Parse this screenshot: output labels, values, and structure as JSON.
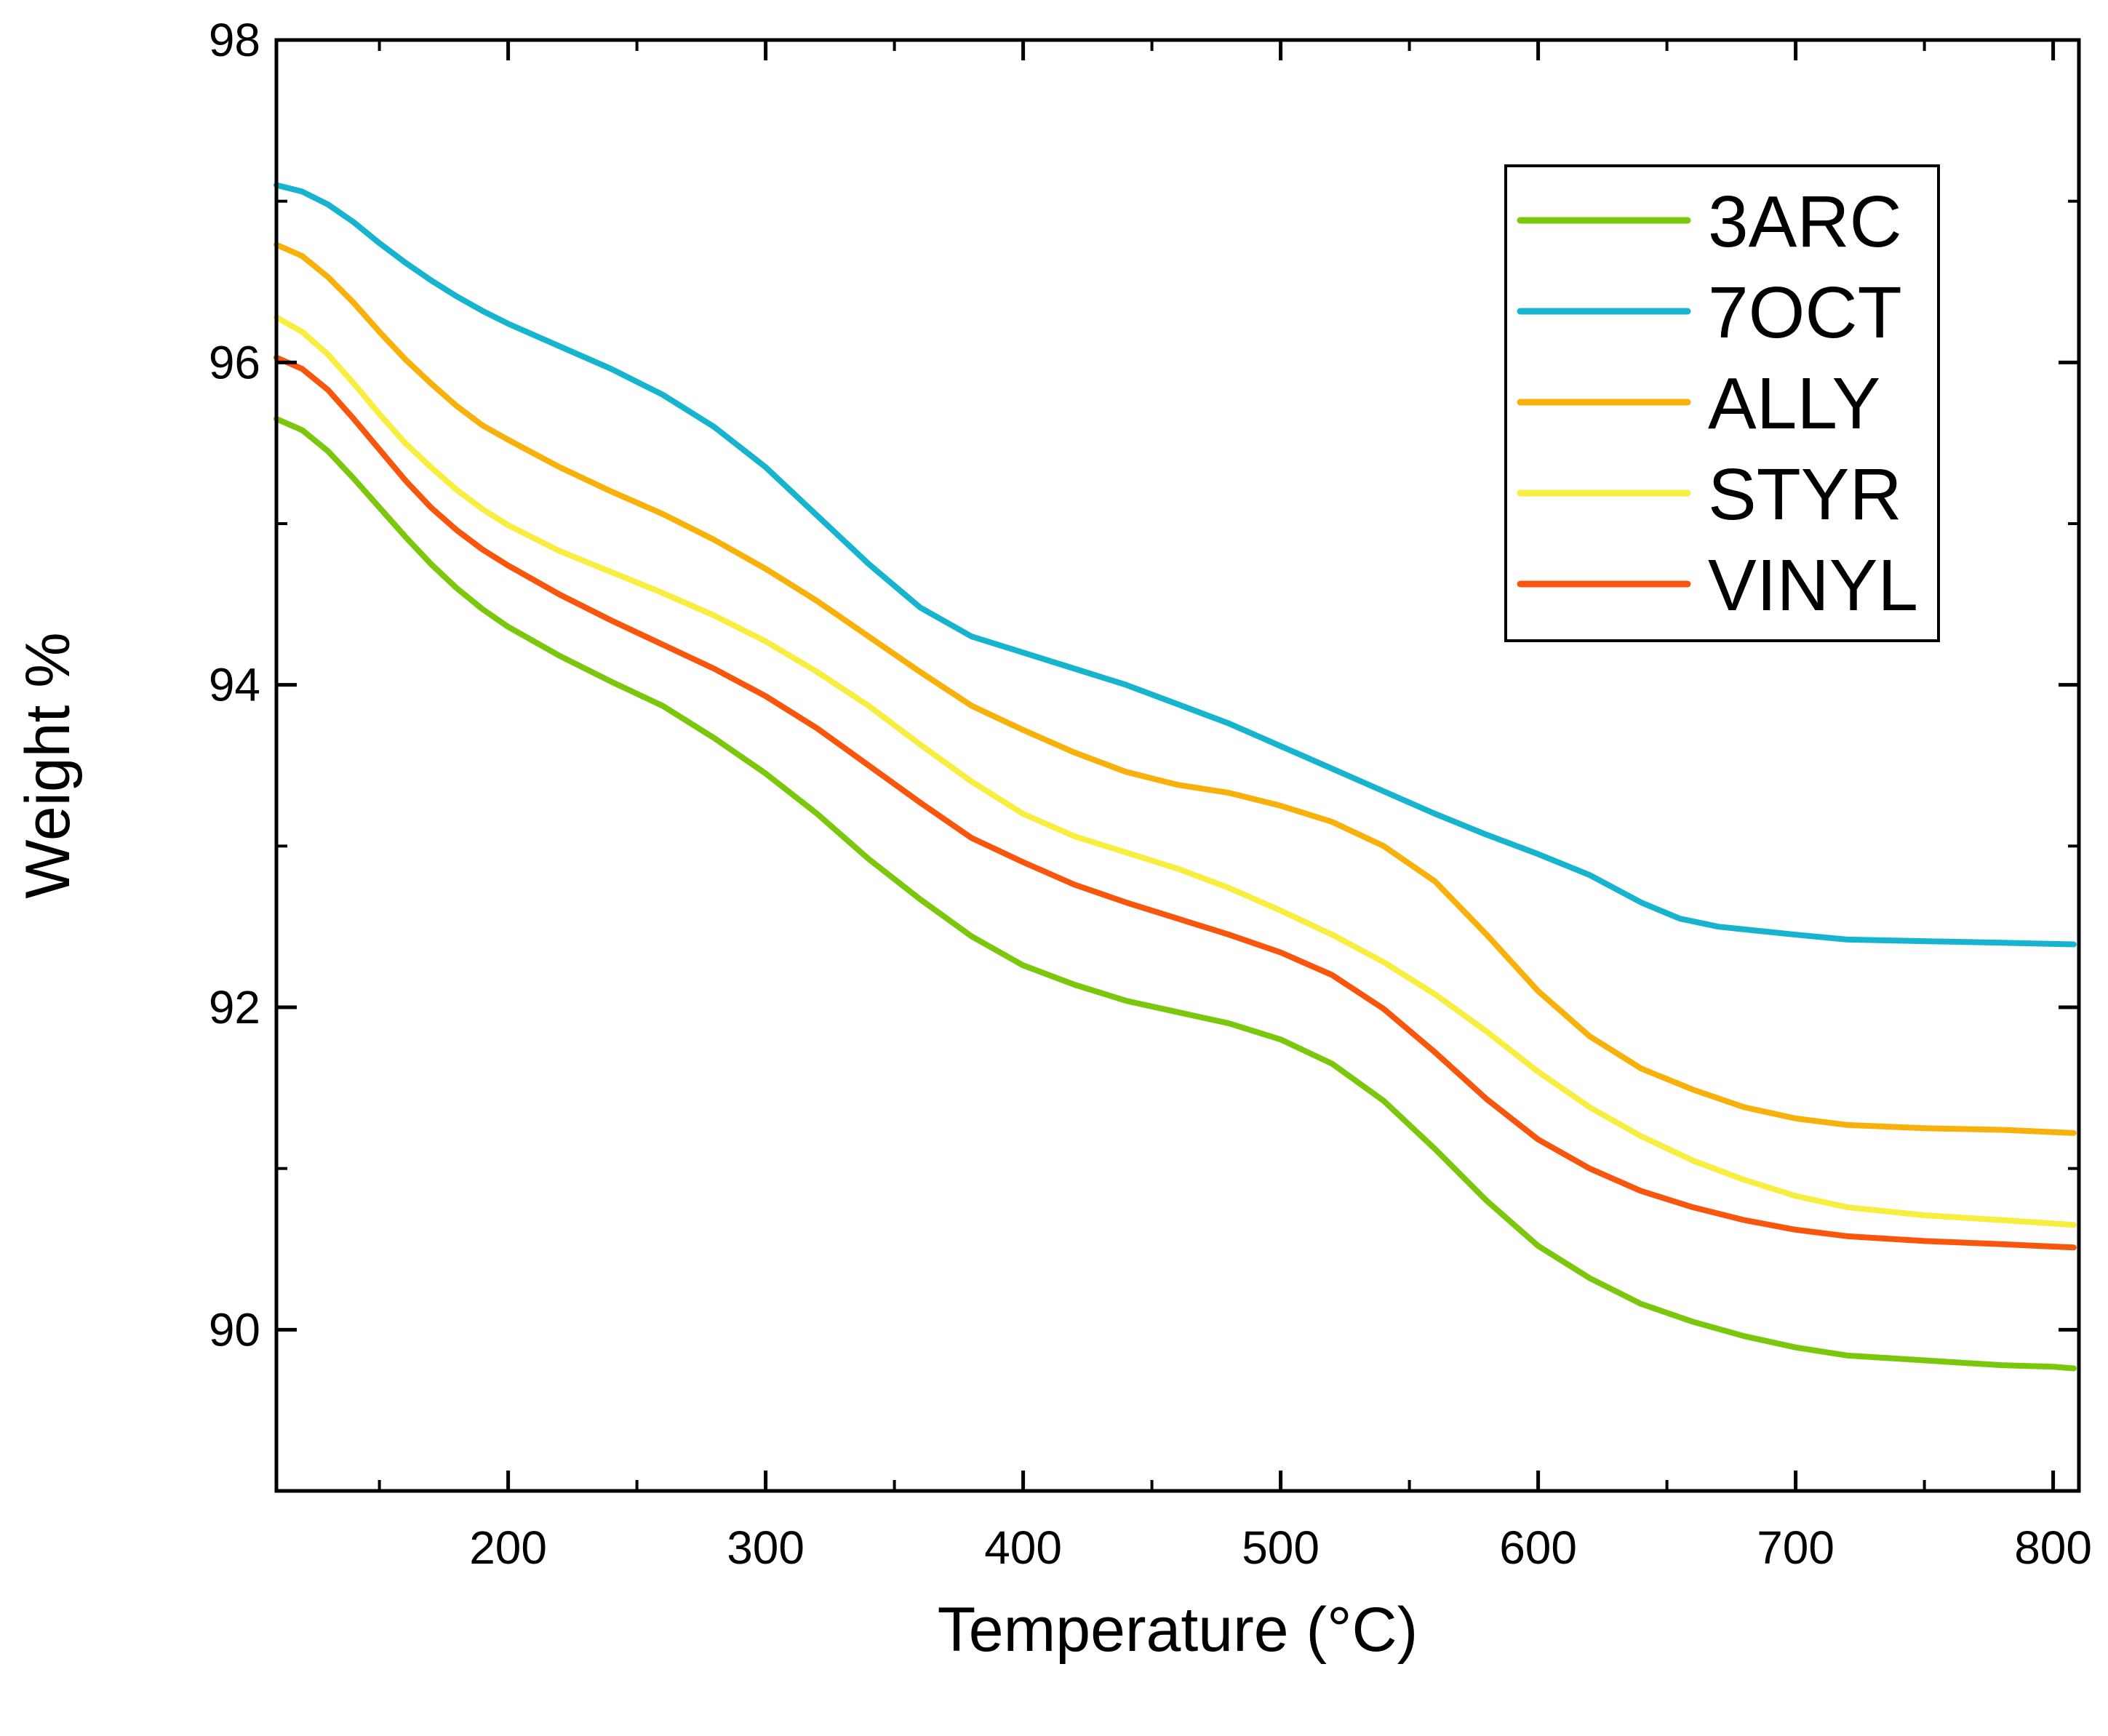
{
  "chart_data": {
    "type": "line",
    "title": "",
    "xlabel": "Temperature (°C)",
    "ylabel": "Weight %",
    "xlim": [
      110,
      810
    ],
    "ylim": [
      89,
      98
    ],
    "xticks": [
      200,
      300,
      400,
      500,
      600,
      700,
      800
    ],
    "xtick_labels": [
      "200",
      "300",
      "400",
      "500",
      "600",
      "700",
      "800"
    ],
    "yticks": [
      90,
      92,
      94,
      96,
      98
    ],
    "ytick_labels": [
      "90",
      "92",
      "94",
      "96",
      "98"
    ],
    "grid": false,
    "legend_position": "top-right",
    "series": [
      {
        "name": "3ARC",
        "color": "#7ac70c",
        "points": [
          [
            110,
            95.65
          ],
          [
            120,
            95.58
          ],
          [
            130,
            95.45
          ],
          [
            140,
            95.28
          ],
          [
            150,
            95.1
          ],
          [
            160,
            94.92
          ],
          [
            170,
            94.75
          ],
          [
            180,
            94.6
          ],
          [
            190,
            94.47
          ],
          [
            200,
            94.36
          ],
          [
            220,
            94.18
          ],
          [
            240,
            94.02
          ],
          [
            260,
            93.87
          ],
          [
            280,
            93.67
          ],
          [
            300,
            93.45
          ],
          [
            320,
            93.2
          ],
          [
            340,
            92.92
          ],
          [
            360,
            92.67
          ],
          [
            380,
            92.44
          ],
          [
            400,
            92.26
          ],
          [
            420,
            92.14
          ],
          [
            440,
            92.04
          ],
          [
            460,
            91.97
          ],
          [
            480,
            91.9
          ],
          [
            500,
            91.8
          ],
          [
            520,
            91.65
          ],
          [
            540,
            91.42
          ],
          [
            560,
            91.12
          ],
          [
            580,
            90.8
          ],
          [
            600,
            90.52
          ],
          [
            620,
            90.32
          ],
          [
            640,
            90.16
          ],
          [
            660,
            90.05
          ],
          [
            680,
            89.96
          ],
          [
            700,
            89.89
          ],
          [
            720,
            89.84
          ],
          [
            740,
            89.82
          ],
          [
            760,
            89.8
          ],
          [
            780,
            89.78
          ],
          [
            800,
            89.77
          ],
          [
            808,
            89.76
          ]
        ]
      },
      {
        "name": "7OCT",
        "color": "#17b4cf",
        "points": [
          [
            110,
            97.1
          ],
          [
            120,
            97.06
          ],
          [
            130,
            96.98
          ],
          [
            140,
            96.87
          ],
          [
            150,
            96.74
          ],
          [
            160,
            96.62
          ],
          [
            170,
            96.51
          ],
          [
            180,
            96.41
          ],
          [
            190,
            96.32
          ],
          [
            200,
            96.24
          ],
          [
            220,
            96.1
          ],
          [
            240,
            95.96
          ],
          [
            260,
            95.8
          ],
          [
            280,
            95.6
          ],
          [
            300,
            95.35
          ],
          [
            320,
            95.05
          ],
          [
            340,
            94.75
          ],
          [
            360,
            94.48
          ],
          [
            380,
            94.3
          ],
          [
            400,
            94.2
          ],
          [
            420,
            94.1
          ],
          [
            440,
            94.0
          ],
          [
            460,
            93.88
          ],
          [
            480,
            93.76
          ],
          [
            500,
            93.62
          ],
          [
            520,
            93.48
          ],
          [
            540,
            93.34
          ],
          [
            560,
            93.2
          ],
          [
            580,
            93.07
          ],
          [
            600,
            92.95
          ],
          [
            620,
            92.82
          ],
          [
            640,
            92.65
          ],
          [
            655,
            92.55
          ],
          [
            670,
            92.5
          ],
          [
            700,
            92.45
          ],
          [
            720,
            92.42
          ],
          [
            750,
            92.41
          ],
          [
            780,
            92.4
          ],
          [
            808,
            92.39
          ]
        ]
      },
      {
        "name": "ALLY",
        "color": "#f7b10a",
        "points": [
          [
            110,
            96.73
          ],
          [
            120,
            96.66
          ],
          [
            130,
            96.53
          ],
          [
            140,
            96.37
          ],
          [
            150,
            96.19
          ],
          [
            160,
            96.02
          ],
          [
            170,
            95.87
          ],
          [
            180,
            95.73
          ],
          [
            190,
            95.61
          ],
          [
            200,
            95.52
          ],
          [
            220,
            95.35
          ],
          [
            240,
            95.2
          ],
          [
            260,
            95.06
          ],
          [
            280,
            94.9
          ],
          [
            300,
            94.72
          ],
          [
            320,
            94.52
          ],
          [
            340,
            94.3
          ],
          [
            360,
            94.08
          ],
          [
            380,
            93.87
          ],
          [
            400,
            93.72
          ],
          [
            420,
            93.58
          ],
          [
            440,
            93.46
          ],
          [
            460,
            93.38
          ],
          [
            480,
            93.33
          ],
          [
            500,
            93.25
          ],
          [
            520,
            93.15
          ],
          [
            540,
            93.0
          ],
          [
            560,
            92.78
          ],
          [
            580,
            92.45
          ],
          [
            600,
            92.1
          ],
          [
            620,
            91.82
          ],
          [
            640,
            91.62
          ],
          [
            660,
            91.49
          ],
          [
            680,
            91.38
          ],
          [
            700,
            91.31
          ],
          [
            720,
            91.27
          ],
          [
            750,
            91.25
          ],
          [
            780,
            91.24
          ],
          [
            808,
            91.22
          ]
        ]
      },
      {
        "name": "STYR",
        "color": "#f7ee40",
        "points": [
          [
            110,
            96.28
          ],
          [
            120,
            96.19
          ],
          [
            130,
            96.05
          ],
          [
            140,
            95.87
          ],
          [
            150,
            95.68
          ],
          [
            160,
            95.5
          ],
          [
            170,
            95.35
          ],
          [
            180,
            95.21
          ],
          [
            190,
            95.09
          ],
          [
            200,
            94.99
          ],
          [
            220,
            94.83
          ],
          [
            240,
            94.7
          ],
          [
            260,
            94.57
          ],
          [
            280,
            94.43
          ],
          [
            300,
            94.27
          ],
          [
            320,
            94.08
          ],
          [
            340,
            93.87
          ],
          [
            360,
            93.63
          ],
          [
            380,
            93.4
          ],
          [
            400,
            93.2
          ],
          [
            420,
            93.06
          ],
          [
            440,
            92.96
          ],
          [
            460,
            92.86
          ],
          [
            480,
            92.74
          ],
          [
            500,
            92.6
          ],
          [
            520,
            92.45
          ],
          [
            540,
            92.28
          ],
          [
            560,
            92.08
          ],
          [
            580,
            91.85
          ],
          [
            600,
            91.6
          ],
          [
            620,
            91.38
          ],
          [
            640,
            91.2
          ],
          [
            660,
            91.05
          ],
          [
            680,
            90.93
          ],
          [
            700,
            90.83
          ],
          [
            720,
            90.76
          ],
          [
            750,
            90.71
          ],
          [
            780,
            90.68
          ],
          [
            808,
            90.65
          ]
        ]
      },
      {
        "name": "VINYL",
        "color": "#f9560d",
        "points": [
          [
            110,
            96.03
          ],
          [
            120,
            95.96
          ],
          [
            130,
            95.83
          ],
          [
            140,
            95.65
          ],
          [
            150,
            95.46
          ],
          [
            160,
            95.27
          ],
          [
            170,
            95.1
          ],
          [
            180,
            94.96
          ],
          [
            190,
            94.84
          ],
          [
            200,
            94.74
          ],
          [
            220,
            94.56
          ],
          [
            240,
            94.4
          ],
          [
            260,
            94.25
          ],
          [
            280,
            94.1
          ],
          [
            300,
            93.93
          ],
          [
            320,
            93.73
          ],
          [
            340,
            93.5
          ],
          [
            360,
            93.27
          ],
          [
            380,
            93.05
          ],
          [
            400,
            92.9
          ],
          [
            420,
            92.76
          ],
          [
            440,
            92.65
          ],
          [
            460,
            92.55
          ],
          [
            480,
            92.45
          ],
          [
            500,
            92.34
          ],
          [
            520,
            92.2
          ],
          [
            540,
            91.99
          ],
          [
            560,
            91.72
          ],
          [
            580,
            91.43
          ],
          [
            600,
            91.18
          ],
          [
            620,
            91.0
          ],
          [
            640,
            90.86
          ],
          [
            660,
            90.76
          ],
          [
            680,
            90.68
          ],
          [
            700,
            90.62
          ],
          [
            720,
            90.58
          ],
          [
            750,
            90.55
          ],
          [
            780,
            90.53
          ],
          [
            808,
            90.51
          ]
        ]
      }
    ]
  }
}
